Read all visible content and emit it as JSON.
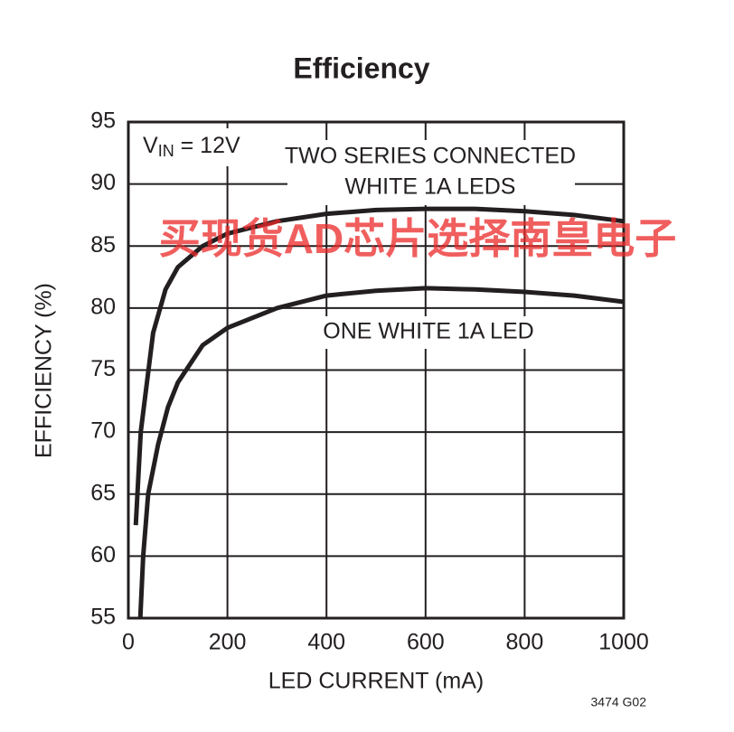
{
  "chart_data": {
    "type": "line",
    "title": "Efficiency",
    "x_label": "LED CURRENT (mA)",
    "y_label": "EFFICIENCY (%)",
    "xlim": [
      0,
      1000
    ],
    "xticks": [
      0,
      200,
      400,
      600,
      800,
      1000
    ],
    "ylim": [
      55,
      95
    ],
    "yticks": [
      55,
      60,
      65,
      70,
      75,
      80,
      85,
      90,
      95
    ],
    "grid": true,
    "annotations": {
      "vin": [
        "V",
        "IN",
        " = 12V"
      ],
      "two_series": [
        "TWO SERIES CONNECTED",
        "WHITE 1A LEDS"
      ],
      "one_white": "ONE WHITE 1A LED"
    },
    "watermark": "买现货AD芯片选择南皇电子",
    "figure_id": "3474 G02",
    "series": [
      {
        "name": "TWO SERIES CONNECTED WHITE 1A LEDS",
        "color": "#231f20",
        "x": [
          15,
          25,
          50,
          75,
          100,
          150,
          200,
          300,
          400,
          500,
          600,
          700,
          800,
          900,
          1000
        ],
        "values": [
          62.5,
          70,
          78,
          81.5,
          83.3,
          85,
          86,
          87,
          87.6,
          87.9,
          88,
          88,
          87.8,
          87.5,
          87
        ]
      },
      {
        "name": "ONE WHITE 1A LED",
        "color": "#231f20",
        "x": [
          24,
          30,
          40,
          60,
          80,
          100,
          150,
          200,
          300,
          400,
          500,
          600,
          700,
          800,
          900,
          1000
        ],
        "values": [
          55,
          60,
          65,
          69,
          72,
          74,
          77,
          78.4,
          80,
          81,
          81.4,
          81.6,
          81.5,
          81.3,
          81,
          80.5
        ]
      }
    ]
  }
}
